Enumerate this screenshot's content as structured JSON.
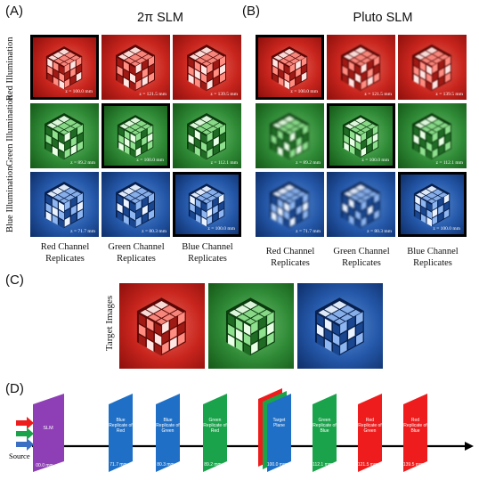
{
  "panels": {
    "a_label": "(A)",
    "a_title": "2π SLM",
    "b_label": "(B)",
    "b_title": "Pluto SLM",
    "c_label": "(C)",
    "d_label": "(D)"
  },
  "row_labels": [
    "Red Illumination",
    "Green Illumination",
    "Blue Illumination"
  ],
  "column_labels": [
    "Red Channel Replicates",
    "Green Channel Replicates",
    "Blue Channel Replicates"
  ],
  "z_labels": {
    "red": [
      "z = 100.0 mm",
      "z = 121.5 mm",
      "z = 139.5 mm"
    ],
    "green": [
      "z = 89.2 mm",
      "z = 100.0 mm",
      "z = 112.1 mm"
    ],
    "blue": [
      "z = 71.7 mm",
      "z = 80.3 mm",
      "z = 100.0 mm"
    ]
  },
  "target_images_label": "Target Images",
  "diagram": {
    "source_label": "Source",
    "slm_label": "SLM",
    "slm_distance": "00.0 mm",
    "planes": [
      {
        "label": "Blue Replicate of Red",
        "distance": "71.7 mm",
        "color": "#1f6fc6"
      },
      {
        "label": "Blue Replicate of Green",
        "distance": "80.3 mm",
        "color": "#1f6fc6"
      },
      {
        "label": "Green Replicate of Red",
        "distance": "89.2 mm",
        "color": "#1aa34a"
      },
      {
        "label": "Target Plane",
        "distance": "100.0 mm",
        "color": "#1f6fc6"
      },
      {
        "label": "Green Replicate of Blue",
        "distance": "112.1 mm",
        "color": "#1aa34a"
      },
      {
        "label": "Red Replicate of Green",
        "distance": "121.5 mm",
        "color": "#ee1c1c"
      },
      {
        "label": "Red Replicate of Blue",
        "distance": "139.5 mm",
        "color": "#ee1c1c"
      }
    ],
    "colors": {
      "slm": "#8e3fb5",
      "red": "#ee1c1c",
      "green": "#1aa34a",
      "blue": "#3b6fc4"
    }
  }
}
